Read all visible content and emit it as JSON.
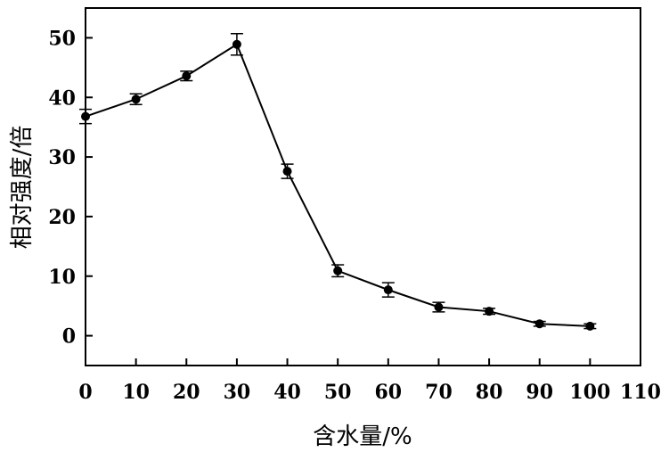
{
  "chart_data": {
    "type": "line",
    "title": "",
    "xlabel": "含水量/%",
    "ylabel": "相对强度/倍",
    "xlim": [
      0,
      110
    ],
    "ylim": [
      -5,
      55
    ],
    "xticks": [
      0,
      10,
      20,
      30,
      40,
      50,
      60,
      70,
      80,
      90,
      100,
      110
    ],
    "yticks": [
      0,
      10,
      20,
      30,
      40,
      50
    ],
    "xtick_labels": [
      "0",
      "10",
      "20",
      "30",
      "40",
      "50",
      "60",
      "70",
      "80",
      "90",
      "100",
      "110"
    ],
    "ytick_labels": [
      "0",
      "10",
      "20",
      "30",
      "40",
      "50"
    ],
    "grid": false,
    "legend": "none",
    "marker": "filled-circle",
    "error_bars": true,
    "series": [
      {
        "x": [
          0,
          10,
          20,
          30,
          40,
          50,
          60,
          70,
          80,
          90,
          100
        ],
        "y": [
          36.8,
          39.7,
          43.6,
          48.9,
          27.6,
          10.9,
          7.7,
          4.8,
          4.1,
          2.0,
          1.6
        ],
        "error": [
          1.2,
          0.9,
          0.8,
          1.8,
          1.2,
          1.0,
          1.2,
          0.8,
          0.5,
          0.4,
          0.4
        ],
        "color": "#000000"
      }
    ]
  }
}
